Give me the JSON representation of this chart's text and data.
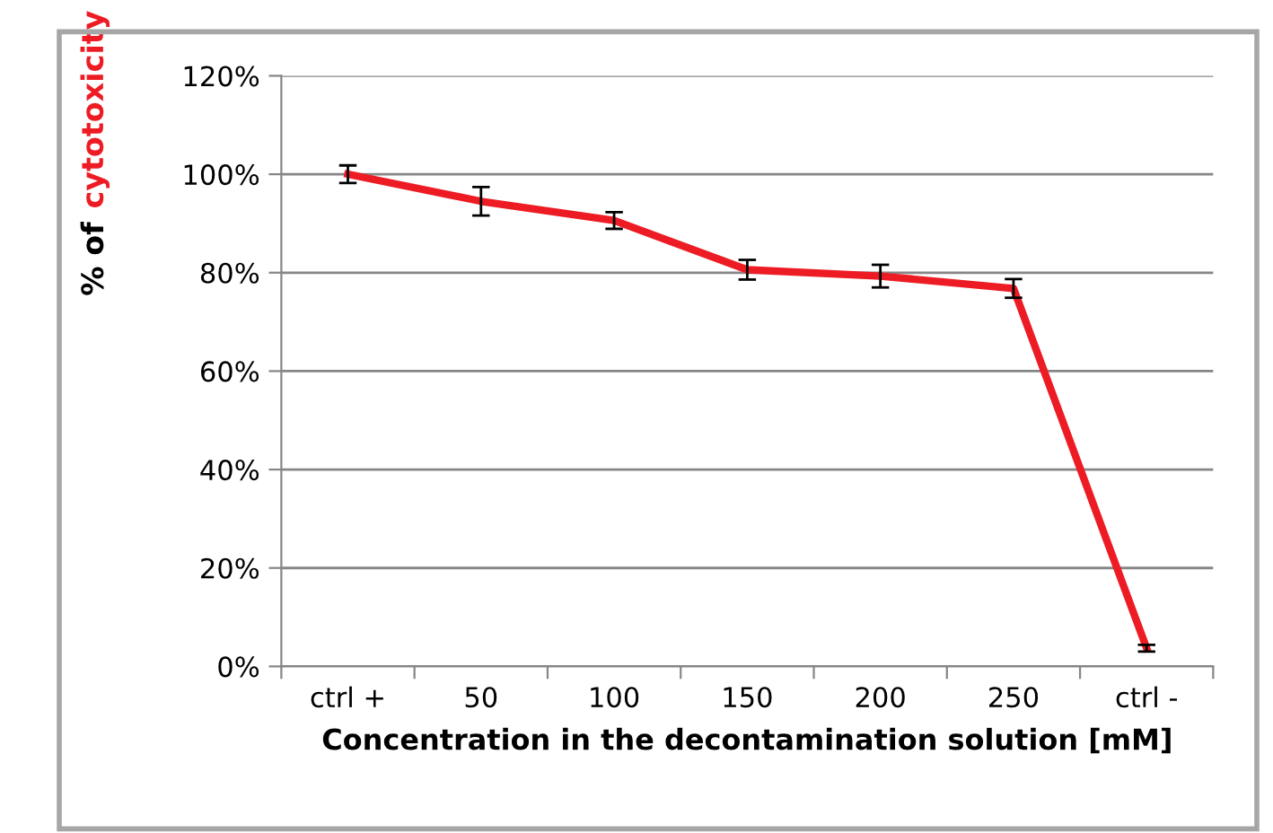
{
  "chart_data": {
    "type": "line",
    "xlabel": "Concentration in the decontamination solution [mM]",
    "ylabel": "% of cytotoxicity",
    "categories": [
      "ctrl +",
      "50",
      "100",
      "150",
      "200",
      "250",
      "ctrl -"
    ],
    "series": [
      {
        "color": "#ed1c24",
        "values": [
          100,
          94.5,
          90.6,
          80.6,
          79.3,
          76.8,
          3.7
        ],
        "errors": [
          1.8,
          2.9,
          1.7,
          2.0,
          2.3,
          1.9,
          0.7
        ]
      }
    ],
    "ylim": [
      0,
      120
    ],
    "yticks": [
      {
        "value": 0,
        "label": "0%"
      },
      {
        "value": 20,
        "label": "20%"
      },
      {
        "value": 40,
        "label": "40%"
      },
      {
        "value": 60,
        "label": "60%"
      },
      {
        "value": 80,
        "label": "80%"
      },
      {
        "value": 100,
        "label": "100%"
      },
      {
        "value": 120,
        "label": "120%"
      }
    ],
    "grid": "y",
    "legend": false,
    "marker": "none",
    "line_style": "solid"
  }
}
